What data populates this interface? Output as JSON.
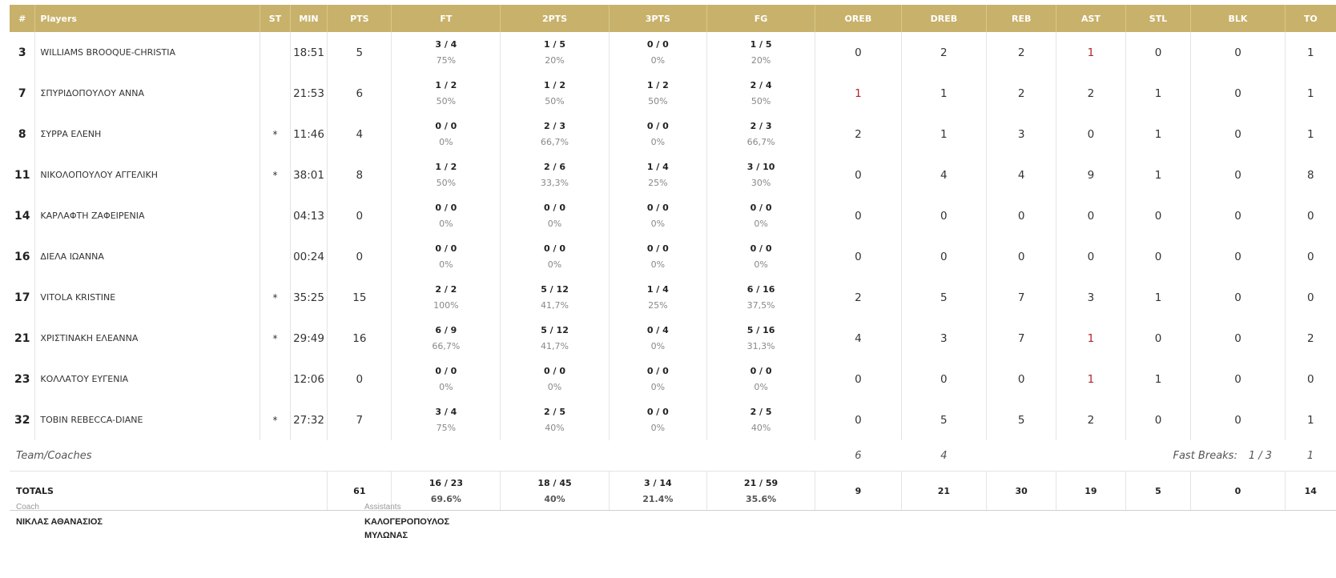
{
  "columns": [
    "#",
    "Players",
    "ST",
    "MIN",
    "PTS",
    "FT",
    "2PTS",
    "3PTS",
    "FG",
    "OREB",
    "DREB",
    "REB",
    "AST",
    "STL",
    "BLK",
    "TO"
  ],
  "players": [
    {
      "num": "3",
      "name": "WILLIAMS BROOQUE-CHRISTIA",
      "st": "",
      "min": "18:51",
      "pts": "5",
      "ft": {
        "m": "3 / 4",
        "p": "75%"
      },
      "p2": {
        "m": "1 / 5",
        "p": "20%"
      },
      "p3": {
        "m": "0 / 0",
        "p": "0%"
      },
      "fg": {
        "m": "1 / 5",
        "p": "20%"
      },
      "oreb": "0",
      "dreb": "2",
      "reb": "2",
      "ast": "1",
      "stl": "0",
      "blk": "0",
      "to": "1"
    },
    {
      "num": "7",
      "name": "ΣΠΥΡΙΔΟΠΟΥΛΟΥ ΑΝΝΑ",
      "st": "",
      "min": "21:53",
      "pts": "6",
      "ft": {
        "m": "1 / 2",
        "p": "50%"
      },
      "p2": {
        "m": "1 / 2",
        "p": "50%"
      },
      "p3": {
        "m": "1 / 2",
        "p": "50%"
      },
      "fg": {
        "m": "2 / 4",
        "p": "50%"
      },
      "oreb": "1",
      "dreb": "1",
      "reb": "2",
      "ast": "2",
      "stl": "1",
      "blk": "0",
      "to": "1"
    },
    {
      "num": "8",
      "name": "ΣΥΡΡΑ ΕΛΕΝΗ",
      "st": "*",
      "min": "11:46",
      "pts": "4",
      "ft": {
        "m": "0 / 0",
        "p": "0%"
      },
      "p2": {
        "m": "2 / 3",
        "p": "66,7%"
      },
      "p3": {
        "m": "0 / 0",
        "p": "0%"
      },
      "fg": {
        "m": "2 / 3",
        "p": "66,7%"
      },
      "oreb": "2",
      "dreb": "1",
      "reb": "3",
      "ast": "0",
      "stl": "1",
      "blk": "0",
      "to": "1"
    },
    {
      "num": "11",
      "name": "ΝΙΚΟΛΟΠΟΥΛΟΥ ΑΓΓΕΛΙΚΗ",
      "st": "*",
      "min": "38:01",
      "pts": "8",
      "ft": {
        "m": "1 / 2",
        "p": "50%"
      },
      "p2": {
        "m": "2 / 6",
        "p": "33,3%"
      },
      "p3": {
        "m": "1 / 4",
        "p": "25%"
      },
      "fg": {
        "m": "3 / 10",
        "p": "30%"
      },
      "oreb": "0",
      "dreb": "4",
      "reb": "4",
      "ast": "9",
      "stl": "1",
      "blk": "0",
      "to": "8"
    },
    {
      "num": "14",
      "name": "ΚΑΡΛΑΦΤΗ ΖΑΦΕΙΡΕΝΙΑ",
      "st": "",
      "min": "04:13",
      "pts": "0",
      "ft": {
        "m": "0 / 0",
        "p": "0%"
      },
      "p2": {
        "m": "0 / 0",
        "p": "0%"
      },
      "p3": {
        "m": "0 / 0",
        "p": "0%"
      },
      "fg": {
        "m": "0 / 0",
        "p": "0%"
      },
      "oreb": "0",
      "dreb": "0",
      "reb": "0",
      "ast": "0",
      "stl": "0",
      "blk": "0",
      "to": "0"
    },
    {
      "num": "16",
      "name": "ΔΙΕΛΑ ΙΩΑΝΝΑ",
      "st": "",
      "min": "00:24",
      "pts": "0",
      "ft": {
        "m": "0 / 0",
        "p": "0%"
      },
      "p2": {
        "m": "0 / 0",
        "p": "0%"
      },
      "p3": {
        "m": "0 / 0",
        "p": "0%"
      },
      "fg": {
        "m": "0 / 0",
        "p": "0%"
      },
      "oreb": "0",
      "dreb": "0",
      "reb": "0",
      "ast": "0",
      "stl": "0",
      "blk": "0",
      "to": "0"
    },
    {
      "num": "17",
      "name": "VITOLA KRISTINE",
      "st": "*",
      "min": "35:25",
      "pts": "15",
      "ft": {
        "m": "2 / 2",
        "p": "100%"
      },
      "p2": {
        "m": "5 / 12",
        "p": "41,7%"
      },
      "p3": {
        "m": "1 / 4",
        "p": "25%"
      },
      "fg": {
        "m": "6 / 16",
        "p": "37,5%"
      },
      "oreb": "2",
      "dreb": "5",
      "reb": "7",
      "ast": "3",
      "stl": "1",
      "blk": "0",
      "to": "0"
    },
    {
      "num": "21",
      "name": "ΧΡΙΣΤΙΝΑΚΗ ΕΛΕΑΝΝΑ",
      "st": "*",
      "min": "29:49",
      "pts": "16",
      "ft": {
        "m": "6 / 9",
        "p": "66,7%"
      },
      "p2": {
        "m": "5 / 12",
        "p": "41,7%"
      },
      "p3": {
        "m": "0 / 4",
        "p": "0%"
      },
      "fg": {
        "m": "5 / 16",
        "p": "31,3%"
      },
      "oreb": "4",
      "dreb": "3",
      "reb": "7",
      "ast": "1",
      "stl": "0",
      "blk": "0",
      "to": "2"
    },
    {
      "num": "23",
      "name": "ΚΟΛΛΑΤΟΥ ΕΥΓΕΝΙΑ",
      "st": "",
      "min": "12:06",
      "pts": "0",
      "ft": {
        "m": "0 / 0",
        "p": "0%"
      },
      "p2": {
        "m": "0 / 0",
        "p": "0%"
      },
      "p3": {
        "m": "0 / 0",
        "p": "0%"
      },
      "fg": {
        "m": "0 / 0",
        "p": "0%"
      },
      "oreb": "0",
      "dreb": "0",
      "reb": "0",
      "ast": "1",
      "stl": "1",
      "blk": "0",
      "to": "0"
    },
    {
      "num": "32",
      "name": "TOBIN REBECCA-DIANE",
      "st": "*",
      "min": "27:32",
      "pts": "7",
      "ft": {
        "m": "3 / 4",
        "p": "75%"
      },
      "p2": {
        "m": "2 / 5",
        "p": "40%"
      },
      "p3": {
        "m": "0 / 0",
        "p": "0%"
      },
      "fg": {
        "m": "2 / 5",
        "p": "40%"
      },
      "oreb": "0",
      "dreb": "5",
      "reb": "5",
      "ast": "2",
      "stl": "0",
      "blk": "0",
      "to": "1"
    }
  ],
  "team": {
    "label": "Team/Coaches",
    "oreb": "6",
    "dreb": "4",
    "fast_breaks_label": "Fast Breaks:",
    "fast_breaks": "1 / 3",
    "to": "1"
  },
  "totals": {
    "label": "TOTALS",
    "pts": "61",
    "ft": {
      "m": "16 / 23",
      "p": "69.6%"
    },
    "p2": {
      "m": "18 / 45",
      "p": "40%"
    },
    "p3": {
      "m": "3 / 14",
      "p": "21.4%"
    },
    "fg": {
      "m": "21 / 59",
      "p": "35.6%"
    },
    "oreb": "9",
    "dreb": "21",
    "reb": "30",
    "ast": "19",
    "stl": "5",
    "blk": "0",
    "to": "14"
  },
  "coach": {
    "label": "Coach",
    "name": "ΝΙΚΛΑΣ ΑΘΑΝΑΣΙΟΣ"
  },
  "assistants": {
    "label": "Assistants",
    "names": [
      "ΚΑΛΟΓΕΡΟΠΟΥΛΟΣ",
      "ΜΥΛΩΝΑΣ"
    ]
  },
  "colors": {
    "header_bg": "#c8b16a",
    "header_text": "#ffffff",
    "highlight": "#b3252a"
  }
}
